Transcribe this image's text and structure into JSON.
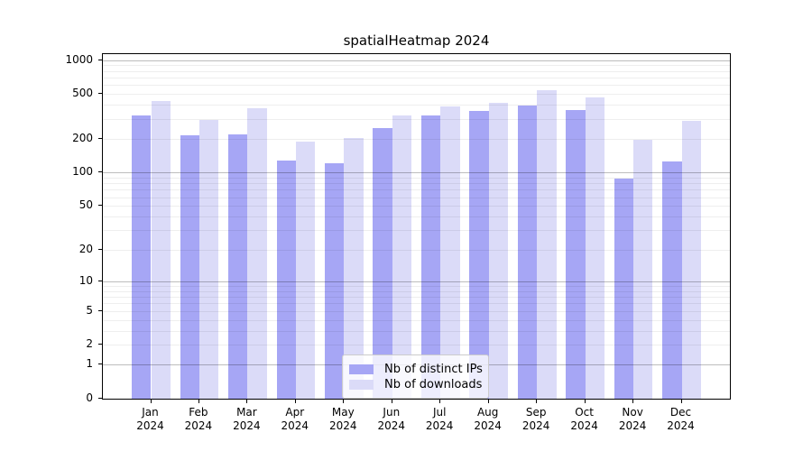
{
  "chart_data": {
    "type": "bar",
    "title": "spatialHeatmap 2024",
    "categories": [
      "Jan 2024",
      "Feb 2024",
      "Mar 2024",
      "Apr 2024",
      "May 2024",
      "Jun 2024",
      "Jul 2024",
      "Aug 2024",
      "Sep 2024",
      "Oct 2024",
      "Nov 2024",
      "Dec 2024"
    ],
    "series": [
      {
        "name": "Nb of distinct IPs",
        "color": "#a6a6f5",
        "values": [
          320,
          214,
          220,
          128,
          122,
          250,
          320,
          351,
          395,
          358,
          88,
          125
        ]
      },
      {
        "name": "Nb of downloads",
        "color": "#dbdbf8",
        "values": [
          430,
          293,
          375,
          188,
          205,
          322,
          390,
          416,
          538,
          469,
          195,
          288
        ]
      }
    ],
    "xlabel": "",
    "ylabel": "",
    "y_ticks": [
      0,
      1,
      2,
      5,
      10,
      20,
      50,
      100,
      200,
      500,
      1000
    ],
    "y_scale": "log10(value+1)",
    "ylim": [
      0,
      1130
    ],
    "grid": true,
    "legend_position": "lower-center-inside"
  }
}
